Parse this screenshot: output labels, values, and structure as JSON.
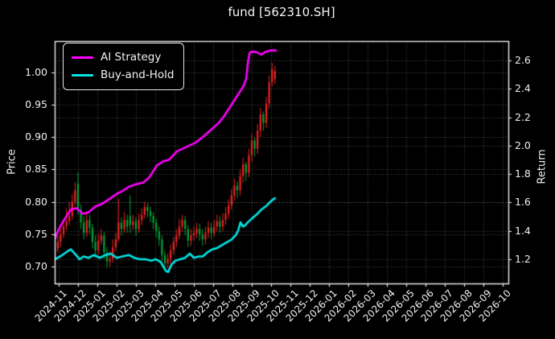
{
  "window": {
    "title": "fund [562310.SH]"
  },
  "colors": {
    "background": "#000000",
    "text": "#f2f2f2",
    "spine": "#f0f0f0",
    "grid": "rgba(255,255,255,0.32)",
    "candle_up": "#ee2222",
    "candle_down": "#00a438",
    "ai_line": "#ff00ff",
    "bh_line": "#00e5e5"
  },
  "legend": {
    "items": [
      {
        "label": "AI Strategy",
        "color": "#ff00ff"
      },
      {
        "label": "Buy-and-Hold",
        "color": "#00e5e5"
      }
    ]
  },
  "chart_data": {
    "type": "candlestick",
    "title": "fund [562310.SH]",
    "ylabel_left": "Price",
    "ylabel_right": "Return",
    "grid": true,
    "legend_position": "upper left",
    "x_axis": {
      "unit": "months since 2024-11 tick",
      "domain": [
        -0.2083,
        23.2917
      ],
      "labels": [
        "2024-11",
        "2024-12",
        "2025-01",
        "2025-02",
        "2025-03",
        "2025-04",
        "2025-05",
        "2025-06",
        "2025-07",
        "2025-08",
        "2025-09",
        "2025-10",
        "2025-11",
        "2025-12",
        "2026-01",
        "2026-02",
        "2026-03",
        "2026-04",
        "2026-05",
        "2026-06",
        "2026-07",
        "2026-08",
        "2026-09",
        "2026-10"
      ]
    },
    "price_axis": {
      "domain": [
        0.6739,
        1.0485
      ],
      "tick_values": [
        0.7,
        0.75,
        0.8,
        0.85,
        0.9,
        0.95,
        1.0
      ],
      "ticks": [
        "0.70",
        "0.75",
        "0.80",
        "0.85",
        "0.90",
        "0.95",
        "1.00"
      ]
    },
    "return_axis": {
      "domain": [
        1.03,
        2.736
      ],
      "tick_values": [
        1.2,
        1.4,
        1.6,
        1.8,
        2.0,
        2.2,
        2.4,
        2.6
      ],
      "ticks": [
        "1.2",
        "1.4",
        "1.6",
        "1.8",
        "2.0",
        "2.2",
        "2.4",
        "2.6"
      ]
    },
    "candles": {
      "note": "fund price OHLC, ~weekly bars, red = up / green = down (CN convention)",
      "t_start": -0.2,
      "t_step": 0.15,
      "ohlc": [
        [
          0.72,
          0.742,
          0.71,
          0.728
        ],
        [
          0.728,
          0.748,
          0.722,
          0.738
        ],
        [
          0.738,
          0.758,
          0.73,
          0.75
        ],
        [
          0.75,
          0.772,
          0.744,
          0.762
        ],
        [
          0.762,
          0.79,
          0.756,
          0.77
        ],
        [
          0.77,
          0.8,
          0.764,
          0.778
        ],
        [
          0.778,
          0.812,
          0.772,
          0.8
        ],
        [
          0.8,
          0.83,
          0.794,
          0.818
        ],
        [
          0.828,
          0.846,
          0.78,
          0.788
        ],
        [
          0.788,
          0.796,
          0.758,
          0.768
        ],
        [
          0.768,
          0.778,
          0.742,
          0.752
        ],
        [
          0.752,
          0.782,
          0.746,
          0.772
        ],
        [
          0.772,
          0.78,
          0.75,
          0.76
        ],
        [
          0.76,
          0.766,
          0.728,
          0.738
        ],
        [
          0.738,
          0.748,
          0.714,
          0.725
        ],
        [
          0.725,
          0.75,
          0.718,
          0.74
        ],
        [
          0.74,
          0.758,
          0.734,
          0.748
        ],
        [
          0.748,
          0.754,
          0.712,
          0.722
        ],
        [
          0.722,
          0.73,
          0.698,
          0.708
        ],
        [
          0.708,
          0.724,
          0.7,
          0.712
        ],
        [
          0.712,
          0.742,
          0.706,
          0.73
        ],
        [
          0.73,
          0.752,
          0.724,
          0.742
        ],
        [
          0.742,
          0.805,
          0.738,
          0.768
        ],
        [
          0.768,
          0.776,
          0.748,
          0.758
        ],
        [
          0.758,
          0.784,
          0.752,
          0.772
        ],
        [
          0.772,
          0.78,
          0.752,
          0.762
        ],
        [
          0.778,
          0.81,
          0.752,
          0.764
        ],
        [
          0.764,
          0.78,
          0.756,
          0.77
        ],
        [
          0.77,
          0.776,
          0.748,
          0.758
        ],
        [
          0.758,
          0.782,
          0.752,
          0.772
        ],
        [
          0.772,
          0.79,
          0.764,
          0.78
        ],
        [
          0.78,
          0.8,
          0.774,
          0.792
        ],
        [
          0.792,
          0.798,
          0.776,
          0.786
        ],
        [
          0.786,
          0.792,
          0.768,
          0.778
        ],
        [
          0.778,
          0.784,
          0.758,
          0.768
        ],
        [
          0.768,
          0.774,
          0.745,
          0.755
        ],
        [
          0.755,
          0.762,
          0.732,
          0.742
        ],
        [
          0.742,
          0.748,
          0.708,
          0.718
        ],
        [
          0.718,
          0.724,
          0.694,
          0.705
        ],
        [
          0.705,
          0.72,
          0.698,
          0.712
        ],
        [
          0.712,
          0.734,
          0.704,
          0.725
        ],
        [
          0.725,
          0.746,
          0.718,
          0.738
        ],
        [
          0.738,
          0.758,
          0.73,
          0.748
        ],
        [
          0.748,
          0.774,
          0.742,
          0.762
        ],
        [
          0.762,
          0.78,
          0.754,
          0.772
        ],
        [
          0.772,
          0.778,
          0.748,
          0.758
        ],
        [
          0.758,
          0.764,
          0.73,
          0.74
        ],
        [
          0.74,
          0.758,
          0.732,
          0.748
        ],
        [
          0.748,
          0.762,
          0.74,
          0.752
        ],
        [
          0.752,
          0.768,
          0.744,
          0.758
        ],
        [
          0.758,
          0.766,
          0.74,
          0.75
        ],
        [
          0.75,
          0.758,
          0.732,
          0.742
        ],
        [
          0.742,
          0.762,
          0.734,
          0.752
        ],
        [
          0.752,
          0.77,
          0.744,
          0.76
        ],
        [
          0.76,
          0.768,
          0.742,
          0.752
        ],
        [
          0.752,
          0.772,
          0.746,
          0.762
        ],
        [
          0.762,
          0.78,
          0.754,
          0.77
        ],
        [
          0.77,
          0.778,
          0.752,
          0.762
        ],
        [
          0.762,
          0.782,
          0.754,
          0.772
        ],
        [
          0.772,
          0.792,
          0.764,
          0.782
        ],
        [
          0.782,
          0.804,
          0.774,
          0.795
        ],
        [
          0.795,
          0.82,
          0.788,
          0.81
        ],
        [
          0.81,
          0.836,
          0.802,
          0.825
        ],
        [
          0.825,
          0.832,
          0.806,
          0.818
        ],
        [
          0.818,
          0.85,
          0.81,
          0.84
        ],
        [
          0.84,
          0.868,
          0.83,
          0.858
        ],
        [
          0.858,
          0.862,
          0.832,
          0.845
        ],
        [
          0.845,
          0.882,
          0.838,
          0.872
        ],
        [
          0.872,
          0.905,
          0.862,
          0.895
        ],
        [
          0.895,
          0.9,
          0.87,
          0.882
        ],
        [
          0.882,
          0.92,
          0.874,
          0.91
        ],
        [
          0.91,
          0.945,
          0.9,
          0.935
        ],
        [
          0.935,
          0.94,
          0.91,
          0.922
        ],
        [
          0.922,
          0.962,
          0.914,
          0.952
        ],
        [
          0.952,
          0.995,
          0.944,
          0.985
        ],
        [
          0.985,
          1.015,
          0.978,
          1.005
        ],
        [
          0.99,
          1.01,
          0.982,
          1.002
        ]
      ]
    },
    "series": [
      {
        "name": "AI Strategy",
        "axis": "return",
        "color": "#ff00ff",
        "points": [
          [
            -0.21,
            1.34
          ],
          [
            0,
            1.41
          ],
          [
            0.29,
            1.48
          ],
          [
            0.63,
            1.55
          ],
          [
            0.92,
            1.56
          ],
          [
            1.25,
            1.52
          ],
          [
            1.54,
            1.53
          ],
          [
            1.88,
            1.57
          ],
          [
            2.25,
            1.59
          ],
          [
            2.58,
            1.62
          ],
          [
            3.0,
            1.66
          ],
          [
            3.29,
            1.68
          ],
          [
            3.63,
            1.71
          ],
          [
            4.04,
            1.73
          ],
          [
            4.38,
            1.74
          ],
          [
            4.71,
            1.78
          ],
          [
            5.08,
            1.86
          ],
          [
            5.42,
            1.89
          ],
          [
            5.71,
            1.9
          ],
          [
            6.13,
            1.96
          ],
          [
            6.46,
            1.98
          ],
          [
            6.75,
            2.0
          ],
          [
            7.08,
            2.02
          ],
          [
            7.46,
            2.06
          ],
          [
            7.88,
            2.11
          ],
          [
            8.29,
            2.16
          ],
          [
            8.58,
            2.21
          ],
          [
            8.96,
            2.29
          ],
          [
            9.29,
            2.36
          ],
          [
            9.58,
            2.42
          ],
          [
            9.71,
            2.47
          ],
          [
            9.79,
            2.57
          ],
          [
            9.88,
            2.65
          ],
          [
            9.96,
            2.66
          ],
          [
            10.21,
            2.66
          ],
          [
            10.5,
            2.64
          ],
          [
            10.71,
            2.66
          ],
          [
            10.96,
            2.67
          ],
          [
            11.25,
            2.67
          ]
        ]
      },
      {
        "name": "Buy-and-Hold",
        "axis": "return",
        "color": "#00e5e5",
        "points": [
          [
            -0.21,
            1.2
          ],
          [
            0.08,
            1.22
          ],
          [
            0.29,
            1.24
          ],
          [
            0.5,
            1.26
          ],
          [
            0.63,
            1.27
          ],
          [
            0.83,
            1.24
          ],
          [
            1.08,
            1.2
          ],
          [
            1.29,
            1.22
          ],
          [
            1.54,
            1.21
          ],
          [
            1.83,
            1.23
          ],
          [
            2.13,
            1.21
          ],
          [
            2.42,
            1.23
          ],
          [
            2.71,
            1.24
          ],
          [
            3.0,
            1.21
          ],
          [
            3.29,
            1.22
          ],
          [
            3.63,
            1.23
          ],
          [
            3.92,
            1.21
          ],
          [
            4.21,
            1.2
          ],
          [
            4.5,
            1.2
          ],
          [
            4.79,
            1.19
          ],
          [
            5.04,
            1.2
          ],
          [
            5.29,
            1.18
          ],
          [
            5.54,
            1.12
          ],
          [
            5.67,
            1.11
          ],
          [
            5.83,
            1.16
          ],
          [
            6.04,
            1.19
          ],
          [
            6.29,
            1.2
          ],
          [
            6.54,
            1.21
          ],
          [
            6.79,
            1.24
          ],
          [
            7.0,
            1.21
          ],
          [
            7.25,
            1.22
          ],
          [
            7.46,
            1.22
          ],
          [
            7.71,
            1.25
          ],
          [
            7.96,
            1.27
          ],
          [
            8.21,
            1.28
          ],
          [
            8.46,
            1.3
          ],
          [
            8.71,
            1.32
          ],
          [
            8.96,
            1.34
          ],
          [
            9.17,
            1.37
          ],
          [
            9.29,
            1.4
          ],
          [
            9.42,
            1.46
          ],
          [
            9.54,
            1.43
          ],
          [
            9.67,
            1.44
          ],
          [
            9.79,
            1.46
          ],
          [
            10.04,
            1.49
          ],
          [
            10.29,
            1.52
          ],
          [
            10.5,
            1.55
          ],
          [
            10.79,
            1.58
          ],
          [
            11.0,
            1.61
          ],
          [
            11.2,
            1.63
          ]
        ]
      }
    ]
  }
}
